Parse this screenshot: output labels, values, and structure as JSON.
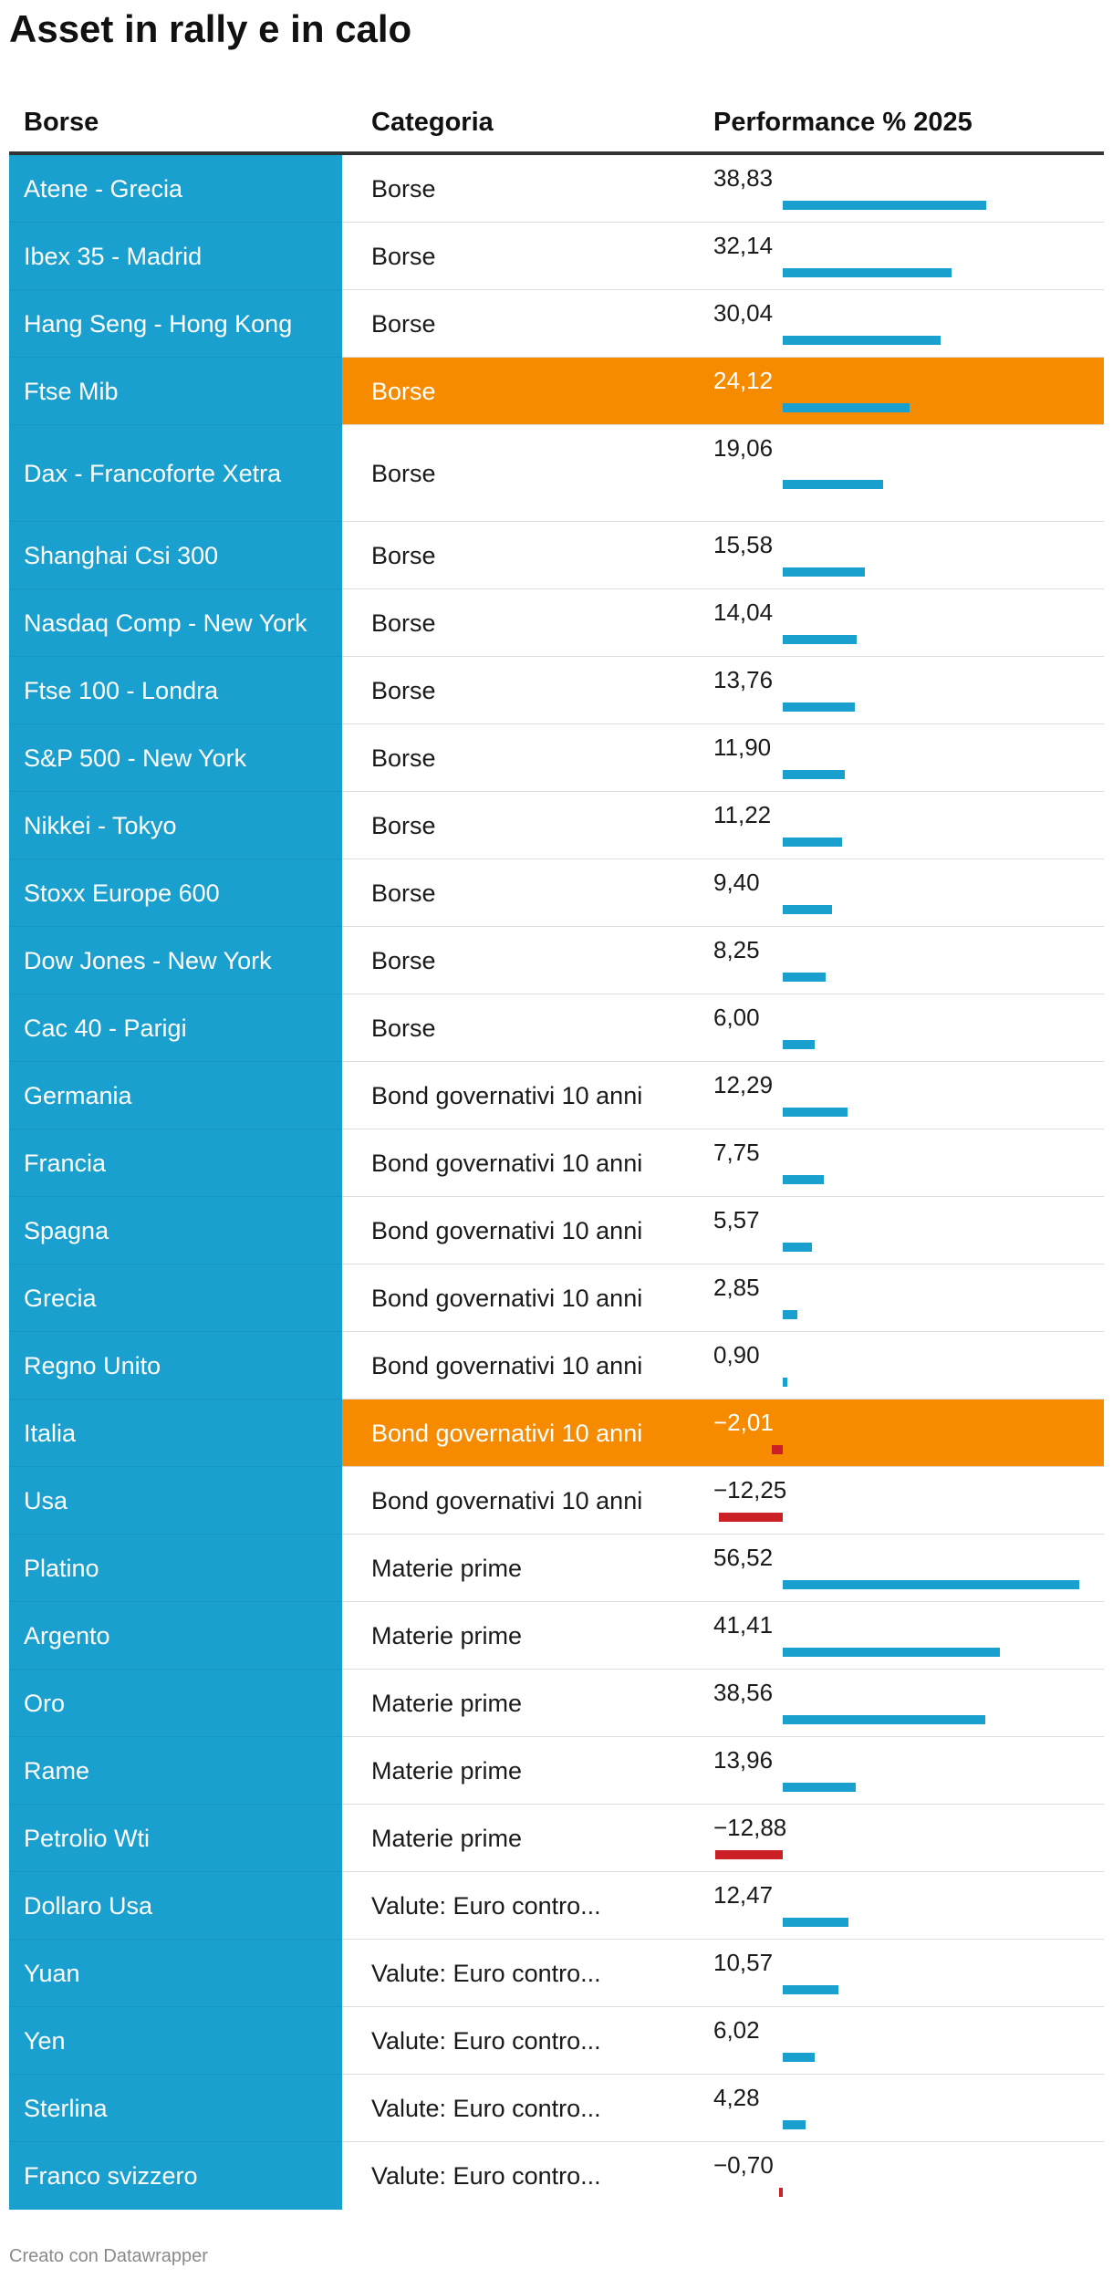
{
  "title": "Asset in rally e in calo",
  "footer": "Creato con Datawrapper",
  "columns": {
    "name": "Borse",
    "category": "Categoria",
    "value": "Performance % 2025"
  },
  "colors": {
    "name_bg": "#1aa0cf",
    "highlight": "#f68b00",
    "pos_bar": "#1aa0cf",
    "neg_bar": "#cc2027"
  },
  "chart_data": {
    "type": "table",
    "value_format": "comma-decimal",
    "rows": [
      {
        "name": "Atene - Grecia",
        "category": "Borse",
        "value": 38.83,
        "label": "38,83",
        "highlight": false
      },
      {
        "name": "Ibex 35 - Madrid",
        "category": "Borse",
        "value": 32.14,
        "label": "32,14",
        "highlight": false
      },
      {
        "name": "Hang Seng - Hong Kong",
        "category": "Borse",
        "value": 30.04,
        "label": "30,04",
        "highlight": false
      },
      {
        "name": "Ftse Mib",
        "category": "Borse",
        "value": 24.12,
        "label": "24,12",
        "highlight": true
      },
      {
        "name": "Dax - Francoforte Xetra",
        "category": "Borse",
        "value": 19.06,
        "label": "19,06",
        "highlight": false
      },
      {
        "name": "Shanghai Csi 300",
        "category": "Borse",
        "value": 15.58,
        "label": "15,58",
        "highlight": false
      },
      {
        "name": "Nasdaq Comp - New York",
        "category": "Borse",
        "value": 14.04,
        "label": "14,04",
        "highlight": false
      },
      {
        "name": "Ftse 100 - Londra",
        "category": "Borse",
        "value": 13.76,
        "label": "13,76",
        "highlight": false
      },
      {
        "name": "S&P 500 - New York",
        "category": "Borse",
        "value": 11.9,
        "label": "11,90",
        "highlight": false
      },
      {
        "name": "Nikkei - Tokyo",
        "category": "Borse",
        "value": 11.22,
        "label": "11,22",
        "highlight": false
      },
      {
        "name": "Stoxx Europe 600",
        "category": "Borse",
        "value": 9.4,
        "label": "9,40",
        "highlight": false
      },
      {
        "name": "Dow Jones - New York",
        "category": "Borse",
        "value": 8.25,
        "label": "8,25",
        "highlight": false
      },
      {
        "name": "Cac 40 - Parigi",
        "category": "Borse",
        "value": 6.0,
        "label": "6,00",
        "highlight": false
      },
      {
        "name": "Germania",
        "category": "Bond governativi 10 anni",
        "value": 12.29,
        "label": "12,29",
        "highlight": false
      },
      {
        "name": "Francia",
        "category": "Bond governativi 10 anni",
        "value": 7.75,
        "label": "7,75",
        "highlight": false
      },
      {
        "name": "Spagna",
        "category": "Bond governativi 10 anni",
        "value": 5.57,
        "label": "5,57",
        "highlight": false
      },
      {
        "name": "Grecia",
        "category": "Bond governativi 10 anni",
        "value": 2.85,
        "label": "2,85",
        "highlight": false
      },
      {
        "name": "Regno Unito",
        "category": "Bond governativi 10 anni",
        "value": 0.9,
        "label": "0,90",
        "highlight": false
      },
      {
        "name": "Italia",
        "category": "Bond governativi 10 anni",
        "value": -2.01,
        "label": "−2,01",
        "highlight": true
      },
      {
        "name": "Usa",
        "category": "Bond governativi 10 anni",
        "value": -12.25,
        "label": "−12,25",
        "highlight": false
      },
      {
        "name": "Platino",
        "category": "Materie prime",
        "value": 56.52,
        "label": "56,52",
        "highlight": false
      },
      {
        "name": "Argento",
        "category": "Materie prime",
        "value": 41.41,
        "label": "41,41",
        "highlight": false
      },
      {
        "name": "Oro",
        "category": "Materie prime",
        "value": 38.56,
        "label": "38,56",
        "highlight": false
      },
      {
        "name": "Rame",
        "category": "Materie prime",
        "value": 13.96,
        "label": "13,96",
        "highlight": false
      },
      {
        "name": "Petrolio Wti",
        "category": "Materie prime",
        "value": -12.88,
        "label": "−12,88",
        "highlight": false
      },
      {
        "name": "Dollaro Usa",
        "category": "Valute: Euro contro...",
        "value": 12.47,
        "label": "12,47",
        "highlight": false
      },
      {
        "name": "Yuan",
        "category": "Valute: Euro contro...",
        "value": 10.57,
        "label": "10,57",
        "highlight": false
      },
      {
        "name": "Yen",
        "category": "Valute: Euro contro...",
        "value": 6.02,
        "label": "6,02",
        "highlight": false
      },
      {
        "name": "Sterlina",
        "category": "Valute: Euro contro...",
        "value": 4.28,
        "label": "4,28",
        "highlight": false
      },
      {
        "name": "Franco svizzero",
        "category": "Valute: Euro contro...",
        "value": -0.7,
        "label": "−0,70",
        "highlight": false
      }
    ]
  }
}
